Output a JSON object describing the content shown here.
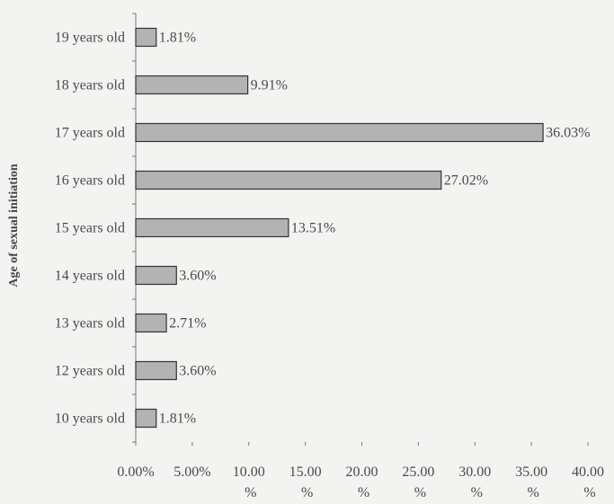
{
  "chart_data": {
    "type": "bar",
    "orientation": "horizontal",
    "categories": [
      "10 years old",
      "12 years old",
      "13 years old",
      "14 years old",
      "15 years old",
      "16 years old",
      "17 years old",
      "18 years old",
      "19 years old"
    ],
    "values": [
      1.81,
      3.6,
      2.71,
      3.6,
      13.51,
      27.02,
      36.03,
      9.91,
      1.81
    ],
    "data_labels": [
      "1.81%",
      "3.60%",
      "2.71%",
      "3.60%",
      "13.51%",
      "27.02%",
      "36.03%",
      "9.91%",
      "1.81%"
    ],
    "xlim": [
      0,
      40
    ],
    "xticks": [
      0,
      5,
      10,
      15,
      20,
      25,
      30,
      35,
      40
    ],
    "xtick_labels": [
      "0.00%",
      "5.00%",
      "10.00 %",
      "15.00 %",
      "20.00 %",
      "25.00 %",
      "30.00 %",
      "35.00 %",
      "40.00 %"
    ],
    "xlabel": "",
    "ylabel": "Age of sexual initiation",
    "title": "",
    "grid": false,
    "legend": "none",
    "colors": {
      "bar_fill": "#b3b3b3",
      "bar_stroke": "#333333",
      "background": "#f3f3f1",
      "text": "#4a4a4a"
    }
  }
}
